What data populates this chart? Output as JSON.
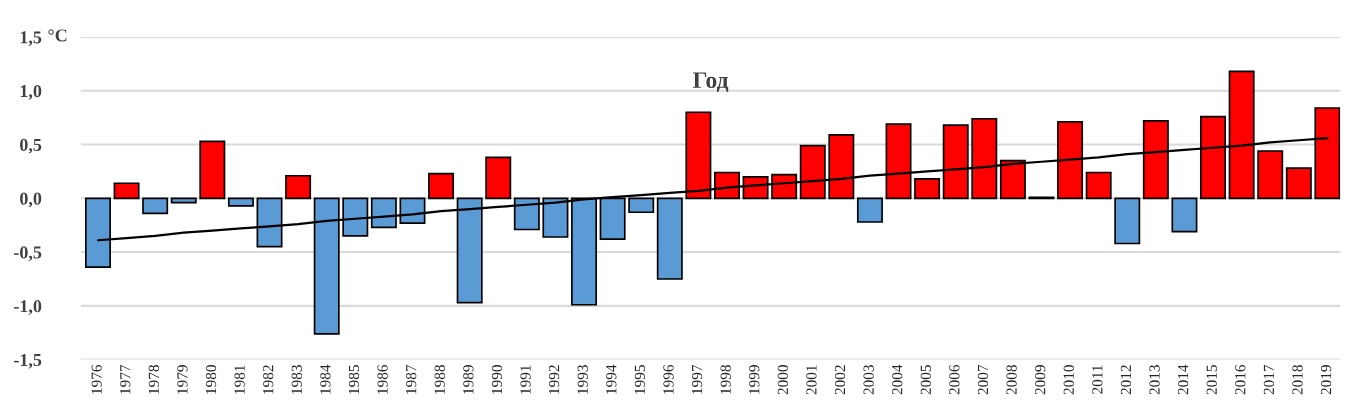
{
  "chart_data": {
    "type": "bar",
    "title": "Год",
    "ylabel": "°C",
    "categories": [
      "1976",
      "1977",
      "1978",
      "1979",
      "1980",
      "1981",
      "1982",
      "1983",
      "1984",
      "1985",
      "1986",
      "1987",
      "1988",
      "1989",
      "1990",
      "1991",
      "1992",
      "1993",
      "1994",
      "1995",
      "1996",
      "1997",
      "1998",
      "1999",
      "2000",
      "2001",
      "2002",
      "2003",
      "2004",
      "2005",
      "2006",
      "2007",
      "2008",
      "2009",
      "2010",
      "2011",
      "2012",
      "2013",
      "2014",
      "2015",
      "2016",
      "2017",
      "2018",
      "2019"
    ],
    "series": [
      {
        "values": [
          -0.64,
          0.14,
          -0.14,
          -0.04,
          0.53,
          -0.07,
          -0.45,
          0.21,
          -1.26,
          -0.35,
          -0.27,
          -0.23,
          0.23,
          -0.97,
          0.38,
          -0.29,
          -0.36,
          -0.99,
          -0.38,
          -0.13,
          -0.75,
          0.8,
          0.24,
          0.2,
          0.22,
          0.49,
          0.59,
          -0.22,
          0.69,
          0.18,
          0.68,
          0.74,
          0.35,
          0.01,
          0.71,
          0.24,
          -0.42,
          0.72,
          -0.31,
          0.76,
          1.18,
          0.44,
          0.28,
          0.84
        ],
        "colors": [
          "#5b9bd5",
          "#ff0000",
          "#5b9bd5",
          "#5b9bd5",
          "#ff0000",
          "#5b9bd5",
          "#5b9bd5",
          "#ff0000",
          "#5b9bd5",
          "#5b9bd5",
          "#5b9bd5",
          "#5b9bd5",
          "#ff0000",
          "#5b9bd5",
          "#ff0000",
          "#5b9bd5",
          "#5b9bd5",
          "#5b9bd5",
          "#5b9bd5",
          "#5b9bd5",
          "#5b9bd5",
          "#ff0000",
          "#ff0000",
          "#ff0000",
          "#ff0000",
          "#ff0000",
          "#ff0000",
          "#5b9bd5",
          "#ff0000",
          "#ff0000",
          "#ff0000",
          "#ff0000",
          "#ff0000",
          "#ff0000",
          "#ff0000",
          "#ff0000",
          "#5b9bd5",
          "#ff0000",
          "#5b9bd5",
          "#ff0000",
          "#ff0000",
          "#ff0000",
          "#ff0000",
          "#ff0000"
        ]
      },
      {
        "type": "line",
        "values": [
          -0.39,
          -0.37,
          -0.35,
          -0.32,
          -0.3,
          -0.28,
          -0.26,
          -0.24,
          -0.21,
          -0.19,
          -0.17,
          -0.15,
          -0.12,
          -0.1,
          -0.08,
          -0.06,
          -0.04,
          -0.01,
          0.01,
          0.03,
          0.05,
          0.07,
          0.1,
          0.12,
          0.14,
          0.16,
          0.18,
          0.21,
          0.23,
          0.25,
          0.27,
          0.29,
          0.32,
          0.34,
          0.36,
          0.38,
          0.41,
          0.43,
          0.45,
          0.47,
          0.49,
          0.52,
          0.54,
          0.56
        ],
        "color": "#000000",
        "line_style": "solid",
        "marker": "none"
      }
    ],
    "ylim": [
      -1.5,
      1.5
    ],
    "yticks": [
      {
        "value": -1.5,
        "label": "-1,5"
      },
      {
        "value": -1.0,
        "label": "-1,0"
      },
      {
        "value": -0.5,
        "label": "-0,5"
      },
      {
        "value": 0.0,
        "label": "0,0"
      },
      {
        "value": 0.5,
        "label": "0,5"
      },
      {
        "value": 1.0,
        "label": "1,0"
      },
      {
        "value": 1.5,
        "label": "1,5"
      }
    ],
    "grid": "y",
    "legend": false
  }
}
